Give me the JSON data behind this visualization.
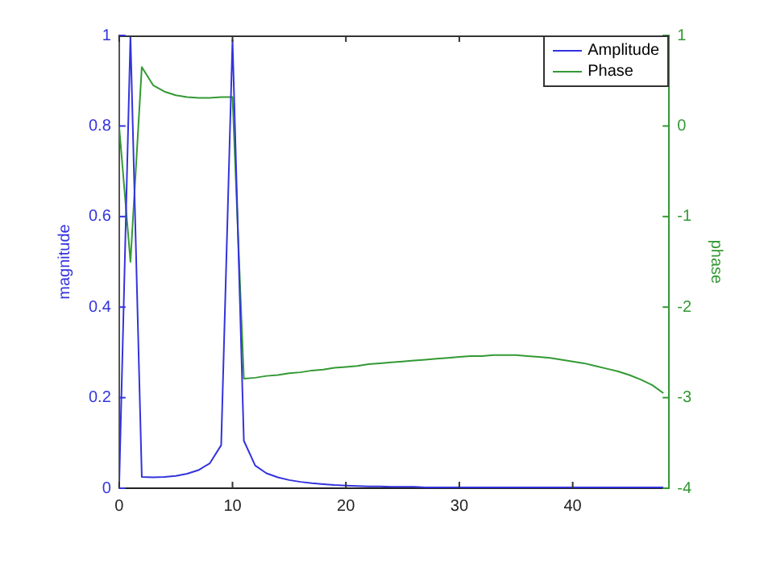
{
  "chart_data": {
    "type": "line",
    "ylabel": "magnitude",
    "y2label": "phase",
    "x": [
      0,
      1,
      2,
      3,
      4,
      5,
      6,
      7,
      8,
      9,
      10,
      11,
      12,
      13,
      14,
      15,
      16,
      17,
      18,
      19,
      20,
      21,
      22,
      23,
      24,
      25,
      26,
      27,
      28,
      29,
      30,
      31,
      32,
      33,
      34,
      35,
      36,
      37,
      38,
      39,
      40,
      41,
      42,
      43,
      44,
      45,
      46,
      47,
      48
    ],
    "series": [
      {
        "name": "Amplitude",
        "color": "#3333dd",
        "values": [
          0,
          1.0,
          0.025,
          0.024,
          0.025,
          0.027,
          0.032,
          0.04,
          0.055,
          0.095,
          0.99,
          0.105,
          0.05,
          0.033,
          0.024,
          0.018,
          0.014,
          0.011,
          0.009,
          0.007,
          0.006,
          0.005,
          0.004,
          0.004,
          0.003,
          0.003,
          0.003,
          0.002,
          0.002,
          0.002,
          0.002,
          0.002,
          0.002,
          0.002,
          0.002,
          0.002,
          0.002,
          0.002,
          0.002,
          0.002,
          0.002,
          0.002,
          0.002,
          0.002,
          0.002,
          0.002,
          0.002,
          0.002,
          0.002
        ]
      },
      {
        "name": "Phase",
        "color": "#339933",
        "axis": "y2",
        "values": [
          0,
          -1.5,
          0.65,
          0.45,
          0.38,
          0.34,
          0.32,
          0.31,
          0.31,
          0.32,
          0.32,
          -2.79,
          -2.78,
          -2.76,
          -2.75,
          -2.73,
          -2.72,
          -2.7,
          -2.69,
          -2.67,
          -2.66,
          -2.65,
          -2.63,
          -2.62,
          -2.61,
          -2.6,
          -2.59,
          -2.58,
          -2.57,
          -2.56,
          -2.55,
          -2.54,
          -2.54,
          -2.53,
          -2.53,
          -2.53,
          -2.54,
          -2.55,
          -2.56,
          -2.58,
          -2.6,
          -2.62,
          -2.65,
          -2.68,
          -2.71,
          -2.75,
          -2.8,
          -2.86,
          -2.95
        ]
      }
    ],
    "xlim": [
      0,
      48.5
    ],
    "xticks": [
      0,
      10,
      20,
      30,
      40
    ],
    "ylim": [
      0,
      1
    ],
    "yticks": [
      0,
      0.2,
      0.4,
      0.6,
      0.8,
      1
    ],
    "y2lim": [
      -4,
      1
    ],
    "y2ticks": [
      -4,
      -3,
      -2,
      -1,
      0,
      1
    ],
    "legend": "top right",
    "grid": false,
    "marker": "none",
    "line_style": "solid"
  }
}
